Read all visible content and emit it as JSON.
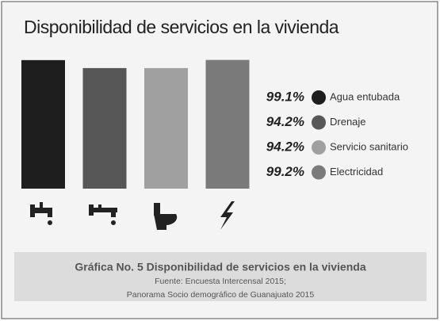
{
  "chart_data": {
    "type": "bar",
    "title": "Disponibilidad de servicios en la vivienda",
    "categories": [
      "Agua entubada",
      "Drenaje",
      "Servicio sanitario",
      "Electricidad"
    ],
    "values": [
      99.1,
      94.2,
      94.2,
      99.2
    ],
    "value_labels": [
      "99.1%",
      "94.2%",
      "94.2%",
      "99.2%"
    ],
    "colors": [
      "#1e1e1e",
      "#575757",
      "#a0a0a0",
      "#7a7a7a"
    ],
    "ylim": [
      20,
      100
    ],
    "caption": "Gráfica No. 5 Disponibilidad de servicios en la vivienda",
    "source": [
      "Fuente: Encuesta Intercensal 2015;",
      "Panorama Socio demográfico de Guanajuato 2015"
    ]
  }
}
